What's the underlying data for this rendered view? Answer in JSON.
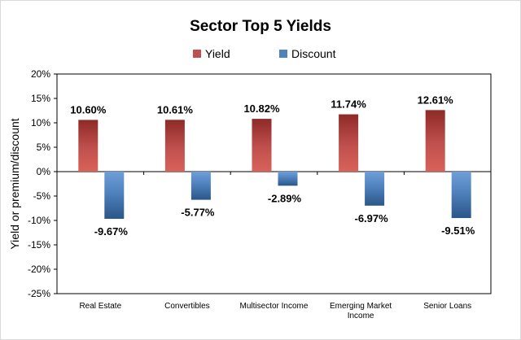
{
  "chart_data": {
    "type": "bar",
    "title": "Sector Top 5 Yields",
    "ylabel": "Yield or premium/discount",
    "xlabel": "",
    "ylim": [
      -25,
      20
    ],
    "ytick_step": 5,
    "ytick_suffix": "%",
    "legend_position": "top",
    "grid": false,
    "categories": [
      [
        "Real Estate"
      ],
      [
        "Convertibles"
      ],
      [
        "Multisector Income"
      ],
      [
        "Emerging Market",
        "Income"
      ],
      [
        "Senior Loans"
      ]
    ],
    "series": [
      {
        "name": "Yield",
        "color": "#c0504d",
        "color_light": "#d9625a",
        "color_dark": "#8e2a27",
        "values": [
          10.6,
          10.61,
          10.82,
          11.74,
          12.61
        ],
        "labels": [
          "10.60%",
          "10.61%",
          "10.82%",
          "11.74%",
          "12.61%"
        ]
      },
      {
        "name": "Discount",
        "color": "#4f81bd",
        "color_light": "#6f9fd8",
        "color_dark": "#2b5688",
        "values": [
          -9.67,
          -5.77,
          -2.89,
          -6.97,
          -9.51
        ],
        "labels": [
          "-9.67%",
          "-5.77%",
          "-2.89%",
          "-6.97%",
          "-9.51%"
        ]
      }
    ]
  }
}
